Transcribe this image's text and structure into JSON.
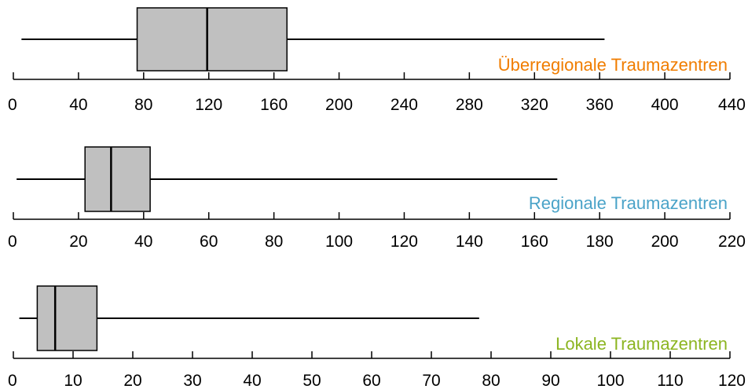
{
  "chart_data": [
    {
      "type": "boxplot",
      "label": "Überregionale Traumazentren",
      "label_color": "#f07d00",
      "box_fill": "#c0c0c0",
      "xlim": [
        0,
        440
      ],
      "ticks": [
        0,
        40,
        80,
        120,
        160,
        200,
        240,
        280,
        320,
        360,
        400,
        440
      ],
      "stats": {
        "min": 5,
        "q1": 76,
        "median": 119,
        "q3": 168,
        "max": 363
      }
    },
    {
      "type": "boxplot",
      "label": "Regionale Traumazentren",
      "label_color": "#4aa3c8",
      "box_fill": "#c0c0c0",
      "xlim": [
        0,
        220
      ],
      "ticks": [
        0,
        20,
        40,
        60,
        80,
        100,
        120,
        140,
        160,
        180,
        200,
        220
      ],
      "stats": {
        "min": 1,
        "q1": 22,
        "median": 30,
        "q3": 42,
        "max": 167
      }
    },
    {
      "type": "boxplot",
      "label": "Lokale Traumazentren",
      "label_color": "#8cb521",
      "box_fill": "#c0c0c0",
      "xlim": [
        0,
        120
      ],
      "ticks": [
        0,
        10,
        20,
        30,
        40,
        50,
        60,
        70,
        80,
        90,
        100,
        110,
        120
      ],
      "stats": {
        "min": 1,
        "q1": 4,
        "median": 7,
        "q3": 14,
        "max": 78
      }
    }
  ]
}
